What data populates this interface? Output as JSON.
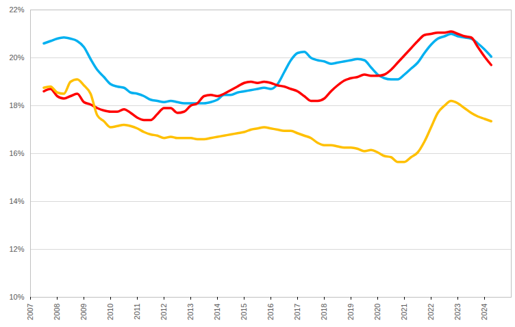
{
  "chart_data": {
    "type": "line",
    "x": [
      2007.5,
      2007.75,
      2008,
      2008.25,
      2008.5,
      2008.75,
      2009,
      2009.25,
      2009.5,
      2009.75,
      2010,
      2010.25,
      2010.5,
      2010.75,
      2011,
      2011.25,
      2011.5,
      2011.75,
      2012,
      2012.25,
      2012.5,
      2012.75,
      2013,
      2013.25,
      2013.5,
      2013.75,
      2014,
      2014.25,
      2014.5,
      2014.75,
      2015,
      2015.25,
      2015.5,
      2015.75,
      2016,
      2016.25,
      2016.5,
      2016.75,
      2017,
      2017.25,
      2017.5,
      2017.75,
      2018,
      2018.25,
      2018.5,
      2018.75,
      2019,
      2019.25,
      2019.5,
      2019.75,
      2020,
      2020.25,
      2020.5,
      2020.75,
      2021,
      2021.25,
      2021.5,
      2021.75,
      2022,
      2022.25,
      2022.5,
      2022.75,
      2023,
      2023.25,
      2023.5,
      2023.75,
      2024,
      2024.25
    ],
    "series": [
      {
        "color": "#00b0f0",
        "values": [
          20.6,
          20.7,
          20.8,
          20.85,
          20.8,
          20.7,
          20.45,
          19.95,
          19.5,
          19.2,
          18.9,
          18.8,
          18.75,
          18.55,
          18.5,
          18.4,
          18.25,
          18.2,
          18.15,
          18.2,
          18.15,
          18.1,
          18.1,
          18.1,
          18.1,
          18.15,
          18.25,
          18.45,
          18.45,
          18.55,
          18.6,
          18.65,
          18.7,
          18.75,
          18.7,
          18.9,
          19.4,
          19.9,
          20.2,
          20.25,
          20.0,
          19.9,
          19.85,
          19.75,
          19.8,
          19.85,
          19.9,
          19.95,
          19.9,
          19.6,
          19.3,
          19.15,
          19.1,
          19.1,
          19.3,
          19.55,
          19.8,
          20.2,
          20.55,
          20.8,
          20.9,
          21.0,
          20.9,
          20.85,
          20.8,
          20.6,
          20.35,
          20.05
        ]
      },
      {
        "color": "#ff0000",
        "values": [
          18.6,
          18.7,
          18.4,
          18.3,
          18.4,
          18.5,
          18.15,
          18.05,
          17.9,
          17.8,
          17.75,
          17.75,
          17.85,
          17.7,
          17.5,
          17.4,
          17.4,
          17.65,
          17.9,
          17.9,
          17.7,
          17.75,
          18.0,
          18.1,
          18.4,
          18.45,
          18.4,
          18.5,
          18.65,
          18.8,
          18.95,
          19.0,
          18.95,
          19.0,
          18.95,
          18.85,
          18.8,
          18.7,
          18.6,
          18.4,
          18.2,
          18.2,
          18.3,
          18.6,
          18.85,
          19.05,
          19.15,
          19.2,
          19.3,
          19.25,
          19.25,
          19.3,
          19.5,
          19.8,
          20.1,
          20.4,
          20.7,
          20.95,
          21.0,
          21.05,
          21.05,
          21.1,
          21.0,
          20.9,
          20.85,
          20.45,
          20.05,
          19.7
        ]
      },
      {
        "color": "#ffc000",
        "values": [
          18.75,
          18.8,
          18.55,
          18.5,
          19.0,
          19.1,
          18.85,
          18.5,
          17.6,
          17.35,
          17.1,
          17.15,
          17.2,
          17.15,
          17.05,
          16.9,
          16.8,
          16.75,
          16.65,
          16.7,
          16.65,
          16.65,
          16.65,
          16.6,
          16.6,
          16.65,
          16.7,
          16.75,
          16.8,
          16.85,
          16.9,
          17.0,
          17.05,
          17.1,
          17.05,
          17.0,
          16.95,
          16.95,
          16.85,
          16.75,
          16.65,
          16.45,
          16.35,
          16.35,
          16.3,
          16.25,
          16.25,
          16.2,
          16.1,
          16.15,
          16.05,
          15.9,
          15.85,
          15.65,
          15.65,
          15.85,
          16.05,
          16.5,
          17.1,
          17.7,
          18.0,
          18.2,
          18.1,
          17.9,
          17.7,
          17.55,
          17.45,
          17.35
        ]
      }
    ],
    "xlim": [
      2007,
      2025
    ],
    "xticks": [
      2007,
      2008,
      2009,
      2010,
      2011,
      2012,
      2013,
      2014,
      2015,
      2016,
      2017,
      2018,
      2019,
      2020,
      2021,
      2022,
      2023,
      2024
    ],
    "ylim": [
      10,
      22
    ],
    "yticks": [
      {
        "value": 10,
        "label": "10%"
      },
      {
        "value": 12,
        "label": "12%"
      },
      {
        "value": 14,
        "label": "14%"
      },
      {
        "value": 16,
        "label": "16%"
      },
      {
        "value": 18,
        "label": "18%"
      },
      {
        "value": 20,
        "label": "20%"
      },
      {
        "value": 22,
        "label": "22%"
      }
    ],
    "grid": true
  }
}
